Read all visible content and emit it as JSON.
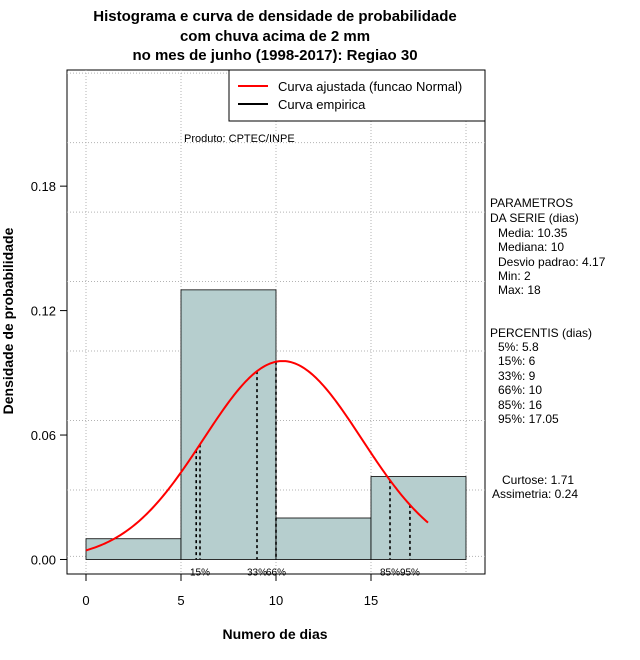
{
  "chart_data": {
    "type": "bar",
    "title_lines": [
      "Histograma e curva de densidade de probabilidade",
      "com chuva acima de 2 mm",
      "no mes de junho (1998-2017): Regiao 30"
    ],
    "xlabel": "Numero de dias",
    "ylabel": "Densidade de probabilidade",
    "xlim": [
      -1,
      21
    ],
    "ylim": [
      -0.007,
      0.236
    ],
    "x_ticks": [
      0,
      5,
      10,
      15
    ],
    "y_ticks": [
      0.0,
      0.06,
      0.12,
      0.18
    ],
    "y_tick_labels": [
      "0.00",
      "0.06",
      "0.12",
      "0.18"
    ],
    "grid": true,
    "bins": [
      {
        "x0": 0,
        "x1": 5,
        "density": 0.01
      },
      {
        "x0": 5,
        "x1": 10,
        "density": 0.13
      },
      {
        "x0": 10,
        "x1": 15,
        "density": 0.02
      },
      {
        "x0": 15,
        "x1": 20,
        "density": 0.04
      }
    ],
    "fitted_curve": {
      "name": "Curva ajustada (funcao Normal)",
      "mean": 10.35,
      "sd": 4.17,
      "x_range": [
        0,
        18
      ],
      "color": "#ff0000"
    },
    "empirical_curve": {
      "name": "Curva empirica",
      "color": "#000000"
    },
    "percentile_lines": [
      {
        "x": 5.8,
        "label": "",
        "label_x": 5.8
      },
      {
        "x": 6,
        "label": "15%",
        "label_x": 6
      },
      {
        "x": 9,
        "label": "33%",
        "label_x": 9
      },
      {
        "x": 10,
        "label": "66%",
        "label_x": 10
      },
      {
        "x": 16,
        "label": "85%",
        "label_x": 16
      },
      {
        "x": 17.05,
        "label": "95%",
        "label_x": 17.05
      }
    ],
    "legend_position": "top-right",
    "source_note": "Produto: CPTEC/INPE",
    "bar_color": "#b6cece"
  },
  "side_panel": {
    "params_title": [
      "PARAMETROS",
      "DA SERIE (dias)"
    ],
    "params": [
      "Media: 10.35",
      "Mediana: 10",
      "Desvio padrao: 4.17",
      "Min: 2",
      "Max: 18"
    ],
    "percentis_title": "PERCENTIS (dias)",
    "percentis": [
      "5%: 5.8",
      "15%: 6",
      "33%: 9",
      "66%: 10",
      "85%: 16",
      "95%: 17.05"
    ],
    "stats": [
      "Curtose: 1.71",
      "Assimetria: 0.24"
    ]
  }
}
